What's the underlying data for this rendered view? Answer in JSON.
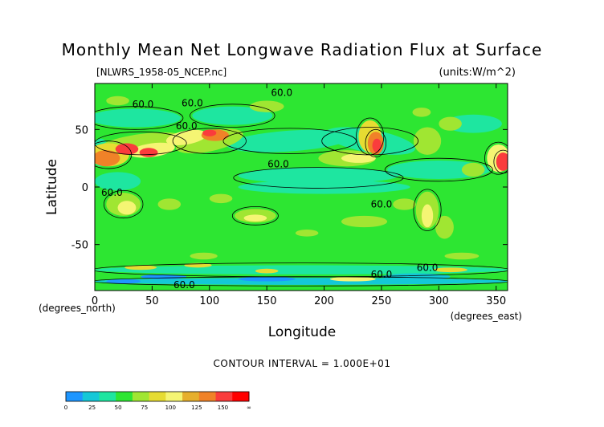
{
  "chart_data": {
    "type": "heatmap",
    "title": "Monthly Mean Net Longwave Radiation Flux at Surface",
    "file_label": "[NLWRS_1958-05_NCEP.nc]",
    "units_label": "(units:W/m^2)",
    "xlabel": "Longitude",
    "ylabel": "Latitude",
    "x_units": "(degrees_east)",
    "y_units": "(degrees_north)",
    "xlim": [
      0,
      360
    ],
    "ylim": [
      -90,
      90
    ],
    "x_ticks": [
      0,
      50,
      100,
      150,
      200,
      250,
      300,
      350
    ],
    "y_ticks": [
      50,
      0,
      -50
    ],
    "contour_interval_text": "CONTOUR INTERVAL = 1.000E+01",
    "contour_labels": [
      {
        "text": "60.0",
        "x": 42,
        "y": 72
      },
      {
        "text": "60.0",
        "x": 85,
        "y": 73
      },
      {
        "text": "60.0",
        "x": 163,
        "y": 82
      },
      {
        "text": "60.0",
        "x": 80,
        "y": 53
      },
      {
        "text": "60.0",
        "x": 160,
        "y": 20
      },
      {
        "text": "60.0",
        "x": 15,
        "y": -5
      },
      {
        "text": "60.0",
        "x": 250,
        "y": -15
      },
      {
        "text": "60.0",
        "x": 290,
        "y": -70
      },
      {
        "text": "60.0",
        "x": 250,
        "y": -76
      },
      {
        "text": "60.0",
        "x": 78,
        "y": -85
      }
    ],
    "grid": false,
    "colorbar": {
      "ticks": [
        "0",
        "25",
        "50",
        "75",
        "100",
        "125",
        "150",
        "∞"
      ],
      "colors": [
        "#1e96ff",
        "#14c8d7",
        "#1ee6a0",
        "#2de632",
        "#a0e632",
        "#e6dc32",
        "#f5f573",
        "#e6af2d",
        "#f08228",
        "#fa3c3c",
        "#ff0000"
      ]
    }
  }
}
